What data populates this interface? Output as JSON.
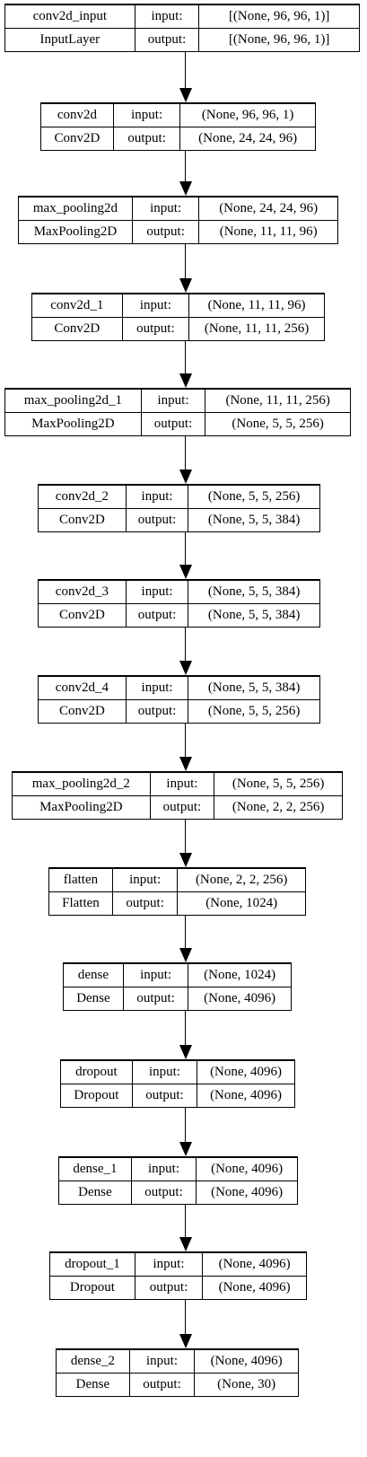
{
  "layers": [
    {
      "name": "conv2d_input",
      "type": "InputLayer",
      "in_label": "input:",
      "out_label": "output:",
      "input": "[(None, 96, 96, 1)]",
      "output": "[(None, 96, 96, 1)]"
    },
    {
      "name": "conv2d",
      "type": "Conv2D",
      "in_label": "input:",
      "out_label": "output:",
      "input": "(None, 96, 96, 1)",
      "output": "(None, 24, 24, 96)"
    },
    {
      "name": "max_pooling2d",
      "type": "MaxPooling2D",
      "in_label": "input:",
      "out_label": "output:",
      "input": "(None, 24, 24, 96)",
      "output": "(None, 11, 11, 96)"
    },
    {
      "name": "conv2d_1",
      "type": "Conv2D",
      "in_label": "input:",
      "out_label": "output:",
      "input": "(None, 11, 11, 96)",
      "output": "(None, 11, 11, 256)"
    },
    {
      "name": "max_pooling2d_1",
      "type": "MaxPooling2D",
      "in_label": "input:",
      "out_label": "output:",
      "input": "(None, 11, 11, 256)",
      "output": "(None, 5, 5, 256)"
    },
    {
      "name": "conv2d_2",
      "type": "Conv2D",
      "in_label": "input:",
      "out_label": "output:",
      "input": "(None, 5, 5, 256)",
      "output": "(None, 5, 5, 384)"
    },
    {
      "name": "conv2d_3",
      "type": "Conv2D",
      "in_label": "input:",
      "out_label": "output:",
      "input": "(None, 5, 5, 384)",
      "output": "(None, 5, 5, 384)"
    },
    {
      "name": "conv2d_4",
      "type": "Conv2D",
      "in_label": "input:",
      "out_label": "output:",
      "input": "(None, 5, 5, 384)",
      "output": "(None, 5, 5, 256)"
    },
    {
      "name": "max_pooling2d_2",
      "type": "MaxPooling2D",
      "in_label": "input:",
      "out_label": "output:",
      "input": "(None, 5, 5, 256)",
      "output": "(None, 2, 2, 256)"
    },
    {
      "name": "flatten",
      "type": "Flatten",
      "in_label": "input:",
      "out_label": "output:",
      "input": "(None, 2, 2, 256)",
      "output": "(None, 1024)"
    },
    {
      "name": "dense",
      "type": "Dense",
      "in_label": "input:",
      "out_label": "output:",
      "input": "(None, 1024)",
      "output": "(None, 4096)"
    },
    {
      "name": "dropout",
      "type": "Dropout",
      "in_label": "input:",
      "out_label": "output:",
      "input": "(None, 4096)",
      "output": "(None, 4096)"
    },
    {
      "name": "dense_1",
      "type": "Dense",
      "in_label": "input:",
      "out_label": "output:",
      "input": "(None, 4096)",
      "output": "(None, 4096)"
    },
    {
      "name": "dropout_1",
      "type": "Dropout",
      "in_label": "input:",
      "out_label": "output:",
      "input": "(None, 4096)",
      "output": "(None, 4096)"
    },
    {
      "name": "dense_2",
      "type": "Dense",
      "in_label": "input:",
      "out_label": "output:",
      "input": "(None, 4096)",
      "output": "(None, 30)"
    }
  ]
}
